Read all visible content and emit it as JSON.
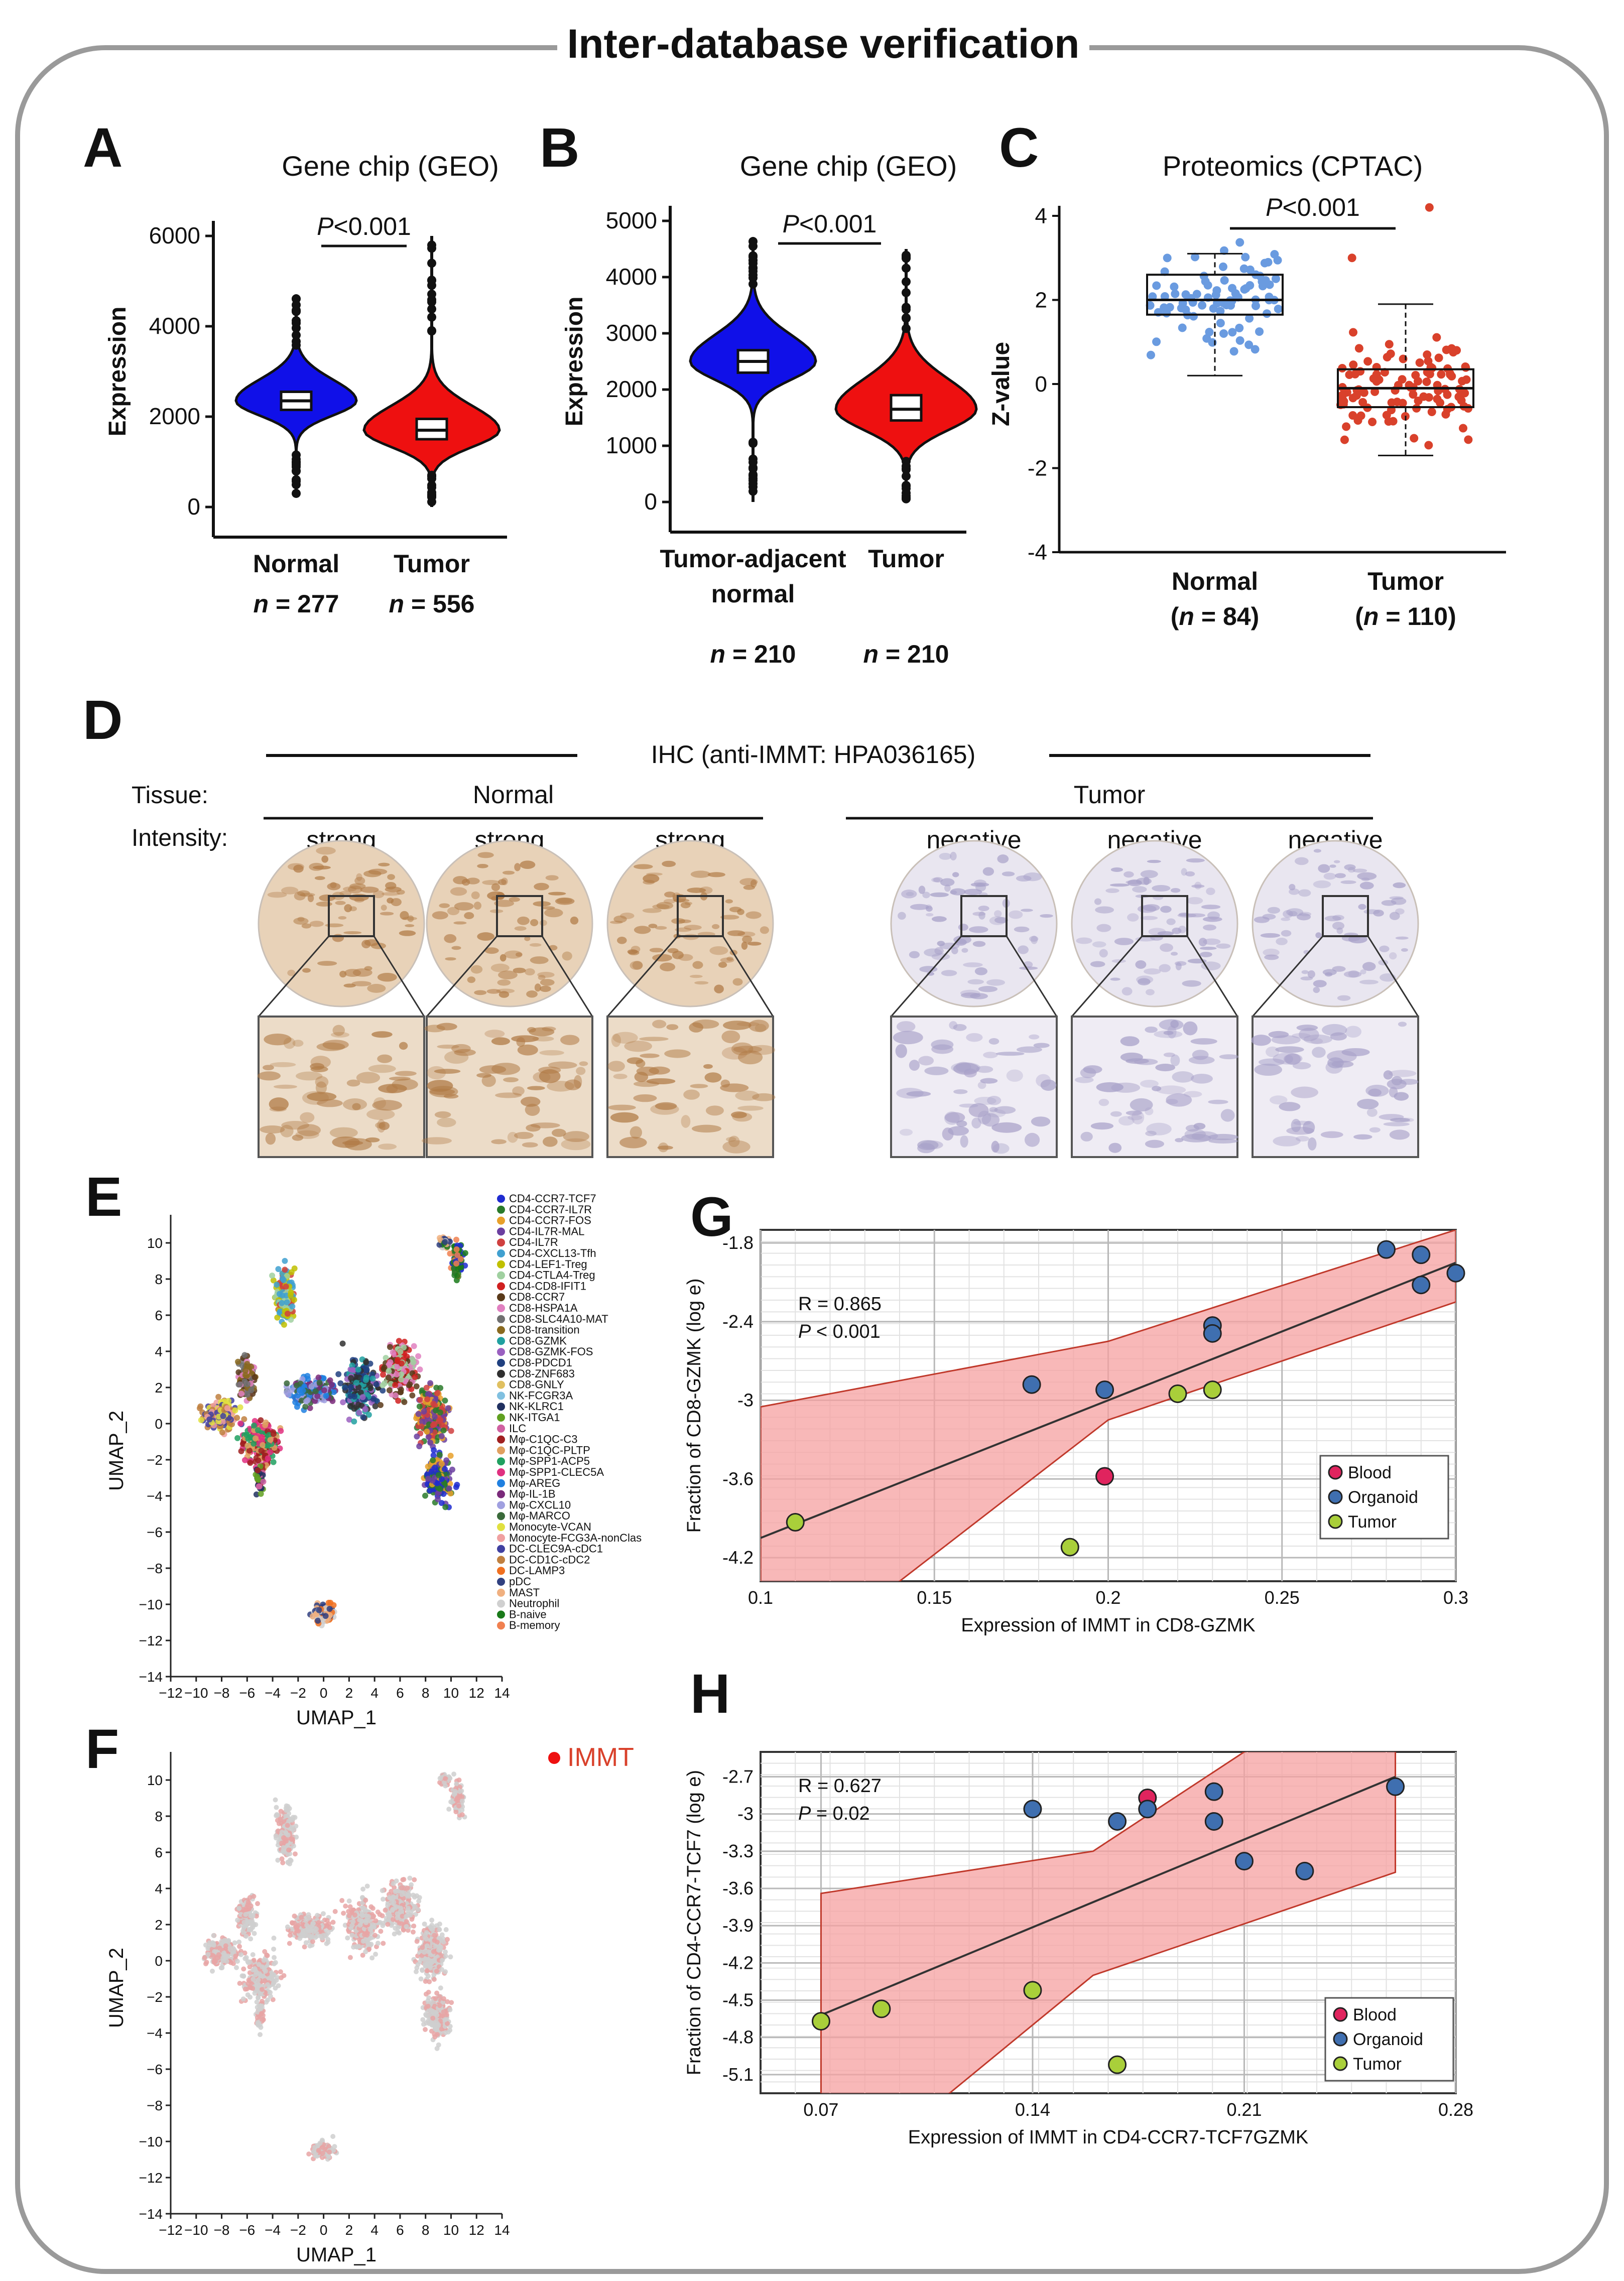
{
  "title": "Inter-database verification",
  "panel_letters": [
    "A",
    "B",
    "C",
    "D",
    "E",
    "F",
    "G",
    "H"
  ],
  "colors": {
    "normal": "#1010e8",
    "tumor": "#ee1010",
    "normal_dot": "#6a9be0",
    "tumor_dot": "#d9412b",
    "band": "#f6a0a0",
    "blood": "#e0245e",
    "organoid": "#3f6fb0",
    "tumor_pt": "#a9cf3a",
    "ihc_brown": "#b07a45",
    "ihc_blue": "#a7a0c8"
  },
  "chart_data": [
    {
      "id": "A",
      "type": "violin",
      "title": "Gene chip (GEO)",
      "ylabel": "Expression",
      "ylim": [
        0,
        6000
      ],
      "yticks": [
        "0",
        "2000",
        "4000",
        "6000"
      ],
      "groups": [
        {
          "name": "Normal",
          "n_label": "n = 277",
          "median": 2350,
          "q1": 2150,
          "q3": 2550,
          "min": 300,
          "max": 4700
        },
        {
          "name": "Tumor",
          "n_label": "n = 556",
          "median": 1700,
          "q1": 1500,
          "q3": 1950,
          "min": 0,
          "max": 6000
        }
      ],
      "pvalue": "P<0.001"
    },
    {
      "id": "B",
      "type": "violin",
      "title": "Gene chip (GEO)",
      "ylabel": "Expression",
      "ylim": [
        0,
        5000
      ],
      "yticks": [
        "0",
        "1000",
        "2000",
        "3000",
        "4000",
        "5000"
      ],
      "groups": [
        {
          "name": "Tumor-adjacent normal",
          "name_lines": [
            "Tumor-adjacent",
            "normal"
          ],
          "n_label": "n = 210",
          "median": 2500,
          "q1": 2300,
          "q3": 2700,
          "min": 0,
          "max": 4700
        },
        {
          "name": "Tumor",
          "name_lines": [
            "Tumor"
          ],
          "n_label": "n = 210",
          "median": 1650,
          "q1": 1450,
          "q3": 1900,
          "min": 0,
          "max": 4500
        }
      ],
      "pvalue": "P<0.001"
    },
    {
      "id": "C",
      "type": "box-scatter",
      "title": "Proteomics (CPTAC)",
      "ylabel": "Z-value",
      "ylim": [
        -4,
        4
      ],
      "yticks": [
        "4",
        "2",
        "0",
        "-2",
        "-4"
      ],
      "groups": [
        {
          "name": "Normal",
          "n_label": "(n = 84)",
          "median": 2.0,
          "q1": 1.65,
          "q3": 2.6,
          "min": 0.2,
          "max": 3.1
        },
        {
          "name": "Tumor",
          "n_label": "(n = 110)",
          "median": -0.1,
          "q1": -0.55,
          "q3": 0.35,
          "min": -1.7,
          "max": 1.9
        }
      ],
      "pvalue": "P<0.001"
    },
    {
      "id": "E",
      "type": "umap",
      "xlabel": "UMAP_1",
      "ylabel": "UMAP_2",
      "xticks": [
        "−12",
        "−10",
        "−8",
        "−6",
        "−4",
        "−2",
        "0",
        "2",
        "4",
        "6",
        "8",
        "10",
        "12",
        "14"
      ],
      "yticks": [
        "10",
        "8",
        "6",
        "4",
        "2",
        "0",
        "−2",
        "−4",
        "−6",
        "−8",
        "−10",
        "−12",
        "−14"
      ],
      "legend": [
        "CD4-CCR7-TCF7",
        "CD4-CCR7-IL7R",
        "CD4-CCR7-FOS",
        "CD4-IL7R-MAL",
        "CD4-IL7R",
        "CD4-CXCL13-Tfh",
        "CD4-LEF1-Treg",
        "CD4-CTLA4-Treg",
        "CD4-CD8-IFIT1",
        "CD8-CCR7",
        "CD8-HSPA1A",
        "CD8-SLC4A10-MAT",
        "CD8-transition",
        "CD8-GZMK",
        "CD8-GZMK-FOS",
        "CD8-PDCD1",
        "CD8-ZNF683",
        "CD8-GNLY",
        "NK-FCGR3A",
        "NK-KLRC1",
        "NK-ITGA1",
        "ILC",
        "Mφ-C1QC-C3",
        "Mφ-C1QC-PLTP",
        "Mφ-SPP1-ACP5",
        "Mφ-SPP1-CLEC5A",
        "Mφ-AREG",
        "Mφ-IL-1B",
        "Mφ-CXCL10",
        "Mφ-MARCO",
        "Monocyte-VCAN",
        "Monocyte-FCG3A-nonClas",
        "DC-CLEC9A-cDC1",
        "DC-CD1C-cDC2",
        "DC-LAMP3",
        "pDC",
        "MAST",
        "Neutrophil",
        "B-naive",
        "B-memory"
      ],
      "legend_colors": [
        "#1f2bd0",
        "#2a7a2a",
        "#e8a02a",
        "#6b3fa0",
        "#d04040",
        "#40a0d0",
        "#c0c000",
        "#a0d0a0",
        "#d02020",
        "#5a3a1a",
        "#e080c0",
        "#707070",
        "#8a6a20",
        "#20a0a0",
        "#9a60c0",
        "#204080",
        "#303030",
        "#e0c060",
        "#80c0e0",
        "#203060",
        "#60a020",
        "#d060a0",
        "#a02020",
        "#e0a060",
        "#20a060",
        "#e03080",
        "#2080e0",
        "#7a2a7a",
        "#a0a0e0",
        "#3a6a3a",
        "#e0e040",
        "#f0a0a0",
        "#4040a0",
        "#c08040",
        "#f07020",
        "#304080",
        "#f0b080",
        "#d0d0d0",
        "#1a7a1a",
        "#f08050"
      ]
    },
    {
      "id": "F",
      "type": "umap",
      "xlabel": "UMAP_1",
      "ylabel": "UMAP_2",
      "legend": [
        "IMMT"
      ],
      "xticks": [
        "−12",
        "−10",
        "−8",
        "−6",
        "−4",
        "−2",
        "0",
        "2",
        "4",
        "6",
        "8",
        "10",
        "12",
        "14"
      ],
      "yticks": [
        "10",
        "8",
        "6",
        "4",
        "2",
        "0",
        "−2",
        "−4",
        "−6",
        "−8",
        "−10",
        "−12",
        "−14"
      ]
    },
    {
      "id": "G",
      "type": "scatter",
      "xlabel": "Expression of IMMT in CD8-GZMK",
      "ylabel": "Fraction of CD8-GZMK (log e)",
      "xlim": [
        0.1,
        0.3
      ],
      "ylim": [
        -4.38,
        -1.7
      ],
      "xticks": [
        "0.1",
        "0.15",
        "0.2",
        "0.25",
        "0.3"
      ],
      "yticks": [
        "-1.8",
        "-2.4",
        "-3",
        "-3.6",
        "-4.2"
      ],
      "annotation": [
        "R = 0.865",
        "P < 0.001"
      ],
      "legend": [
        "Blood",
        "Organoid",
        "Tumor"
      ],
      "fit": {
        "x": [
          0.1,
          0.3
        ],
        "y": [
          -4.05,
          -1.95
        ]
      },
      "band": {
        "x": [
          0.1,
          0.2,
          0.3
        ],
        "upper": [
          -3.05,
          -2.55,
          -1.7
        ],
        "lower": [
          -5.2,
          -3.15,
          -2.25
        ]
      },
      "points": [
        {
          "x": 0.199,
          "y": -3.58,
          "g": "Blood"
        },
        {
          "x": 0.178,
          "y": -2.88,
          "g": "Organoid"
        },
        {
          "x": 0.199,
          "y": -2.92,
          "g": "Organoid"
        },
        {
          "x": 0.23,
          "y": -2.43,
          "g": "Organoid"
        },
        {
          "x": 0.23,
          "y": -2.49,
          "g": "Organoid"
        },
        {
          "x": 0.28,
          "y": -1.85,
          "g": "Organoid"
        },
        {
          "x": 0.29,
          "y": -1.89,
          "g": "Organoid"
        },
        {
          "x": 0.29,
          "y": -2.12,
          "g": "Organoid"
        },
        {
          "x": 0.3,
          "y": -2.03,
          "g": "Organoid"
        },
        {
          "x": 0.11,
          "y": -3.93,
          "g": "Tumor"
        },
        {
          "x": 0.189,
          "y": -4.12,
          "g": "Tumor"
        },
        {
          "x": 0.22,
          "y": -2.95,
          "g": "Tumor"
        },
        {
          "x": 0.23,
          "y": -2.92,
          "g": "Tumor"
        }
      ]
    },
    {
      "id": "H",
      "type": "scatter",
      "xlabel": "Expression of IMMT in CD4-CCR7-TCF7GZMK",
      "ylabel": "Fraction of CD4-CCR7-TCF7 (log e)",
      "xlim": [
        0.05,
        0.28
      ],
      "ylim": [
        -5.25,
        -2.5
      ],
      "xticks": [
        "0.07",
        "0.14",
        "0.21",
        "0.28"
      ],
      "yticks": [
        "-2.7",
        "-3",
        "-3.3",
        "-3.6",
        "-3.9",
        "-4.2",
        "-4.5",
        "-4.8",
        "-5.1"
      ],
      "annotation": [
        "R = 0.627",
        "P = 0.02"
      ],
      "legend": [
        "Blood",
        "Organoid",
        "Tumor"
      ],
      "fit": {
        "x": [
          0.07,
          0.26
        ],
        "y": [
          -4.62,
          -2.7
        ]
      },
      "band": {
        "x": [
          0.07,
          0.16,
          0.26
        ],
        "upper": [
          -3.64,
          -3.3,
          -1.7
        ],
        "lower": [
          -6.1,
          -4.3,
          -3.47
        ]
      },
      "points": [
        {
          "x": 0.178,
          "y": -2.87,
          "g": "Blood"
        },
        {
          "x": 0.14,
          "y": -2.96,
          "g": "Organoid"
        },
        {
          "x": 0.168,
          "y": -3.06,
          "g": "Organoid"
        },
        {
          "x": 0.178,
          "y": -2.96,
          "g": "Organoid"
        },
        {
          "x": 0.2,
          "y": -2.82,
          "g": "Organoid"
        },
        {
          "x": 0.2,
          "y": -3.06,
          "g": "Organoid"
        },
        {
          "x": 0.21,
          "y": -3.38,
          "g": "Organoid"
        },
        {
          "x": 0.23,
          "y": -3.46,
          "g": "Organoid"
        },
        {
          "x": 0.26,
          "y": -2.78,
          "g": "Organoid"
        },
        {
          "x": 0.07,
          "y": -4.67,
          "g": "Tumor"
        },
        {
          "x": 0.09,
          "y": -4.57,
          "g": "Tumor"
        },
        {
          "x": 0.14,
          "y": -4.42,
          "g": "Tumor"
        },
        {
          "x": 0.168,
          "y": -5.02,
          "g": "Tumor"
        }
      ]
    }
  ],
  "ihc": {
    "title": "IHC (anti-IMMT: HPA036165)",
    "tissue_label": "Tissue:",
    "intensity_label": "Intensity:",
    "groups": [
      {
        "name": "Normal",
        "intensities": [
          "strong",
          "strong",
          "strong"
        ]
      },
      {
        "name": "Tumor",
        "intensities": [
          "negative",
          "negative",
          "negative"
        ]
      }
    ]
  }
}
